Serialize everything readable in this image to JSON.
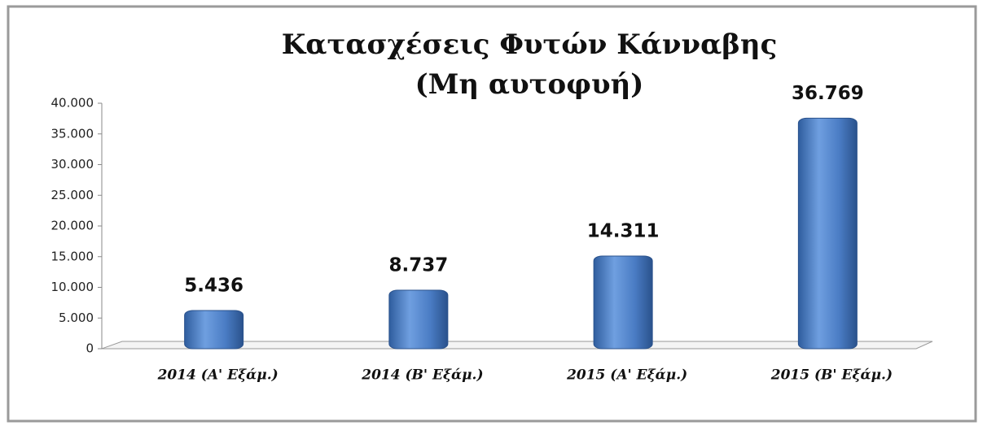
{
  "chart_data": {
    "type": "bar",
    "title": "Κατασχέσεις Φυτών Κάνναβης",
    "subtitle": "(Μη αυτοφυή)",
    "categories": [
      "2014 (Α' Εξάμ.)",
      "2014 (Β' Εξάμ.)",
      "2015 (Α' Εξάμ.)",
      "2015 (Β' Εξάμ.)"
    ],
    "values": [
      5436,
      8737,
      14311,
      36769
    ],
    "value_labels": [
      "5.436",
      "8.737",
      "14.311",
      "36.769"
    ],
    "color": "#4a7cc4",
    "ylim": [
      0,
      40000
    ],
    "yticks": [
      0,
      {
        "value": 5000,
        "label": "5.000"
      },
      {
        "value": 10000,
        "label": "10.000"
      },
      {
        "value": 15000,
        "label": "15.000"
      },
      {
        "value": 20000,
        "label": "20.000"
      },
      {
        "value": 25000,
        "label": "25.000"
      },
      {
        "value": 30000,
        "label": "30.000"
      },
      {
        "value": 35000,
        "label": "35.000"
      },
      {
        "value": 40000,
        "label": "40.000"
      }
    ]
  }
}
